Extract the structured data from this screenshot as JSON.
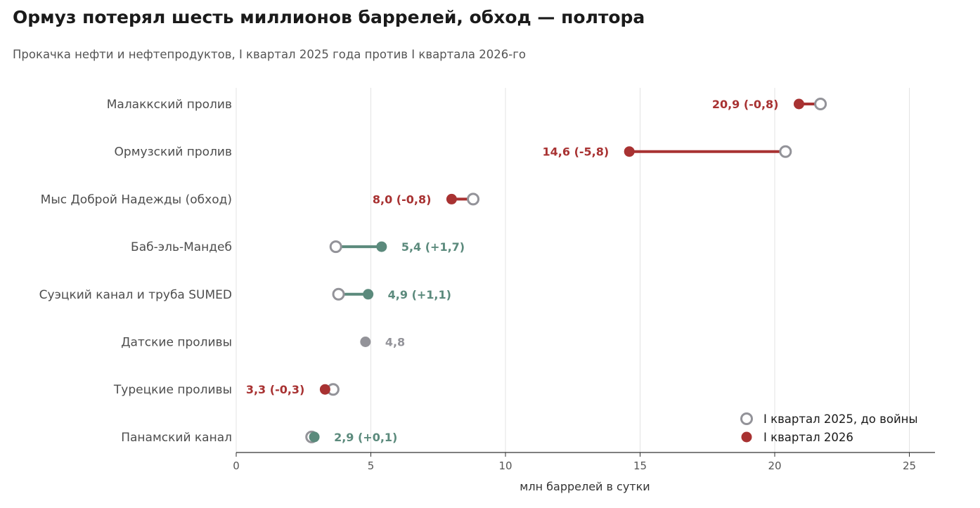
{
  "title": "Ормуз потерял шесть миллионов баррелей, обход — полтора",
  "subtitle": "Прокачка нефти и нефтепродуктов, I квартал 2025 года против I квартала 2026-го",
  "colors": {
    "decline": "#a83232",
    "increase": "#5b8a7c",
    "neutral": "#939399",
    "before_marker": "#939399",
    "grid": "#e3e3e3",
    "axis": "#333333"
  },
  "chart_data": {
    "type": "dumbbell",
    "xlabel": "млн баррелей в сутки",
    "xlim": [
      0,
      26
    ],
    "xticks": [
      0,
      5,
      10,
      15,
      20,
      25
    ],
    "xtick_labels": [
      "0",
      "5",
      "10",
      "15",
      "20",
      "25"
    ],
    "grid": "vertical",
    "legend_position": "bottom-right",
    "legend": [
      {
        "key": "before",
        "label": "I квартал 2025, до войны"
      },
      {
        "key": "after",
        "label": "I квартал 2026"
      }
    ],
    "rows": [
      {
        "category": "Малаккский пролив",
        "before": 21.7,
        "after": 20.9,
        "label": "20,9  (-0,8)",
        "trend": "decline"
      },
      {
        "category": "Ормузский пролив",
        "before": 20.4,
        "after": 14.6,
        "label": "14,6  (-5,8)",
        "trend": "decline"
      },
      {
        "category": "Мыс Доброй Надежды (обход)",
        "before": 8.8,
        "after": 8.0,
        "label": "8,0  (-0,8)",
        "trend": "decline"
      },
      {
        "category": "Баб-эль-Мандеб",
        "before": 3.7,
        "after": 5.4,
        "label": "5,4  (+1,7)",
        "trend": "increase"
      },
      {
        "category": "Суэцкий канал и труба SUMED",
        "before": 3.8,
        "after": 4.9,
        "label": "4,9  (+1,1)",
        "trend": "increase"
      },
      {
        "category": "Датские проливы",
        "before": 4.8,
        "after": 4.8,
        "label": "4,8",
        "trend": "neutral"
      },
      {
        "category": "Турецкие проливы",
        "before": 3.6,
        "after": 3.3,
        "label": "3,3  (-0,3)",
        "trend": "decline"
      },
      {
        "category": "Панамский канал",
        "before": 2.8,
        "after": 2.9,
        "label": "2,9  (+0,1)",
        "trend": "increase"
      }
    ]
  }
}
